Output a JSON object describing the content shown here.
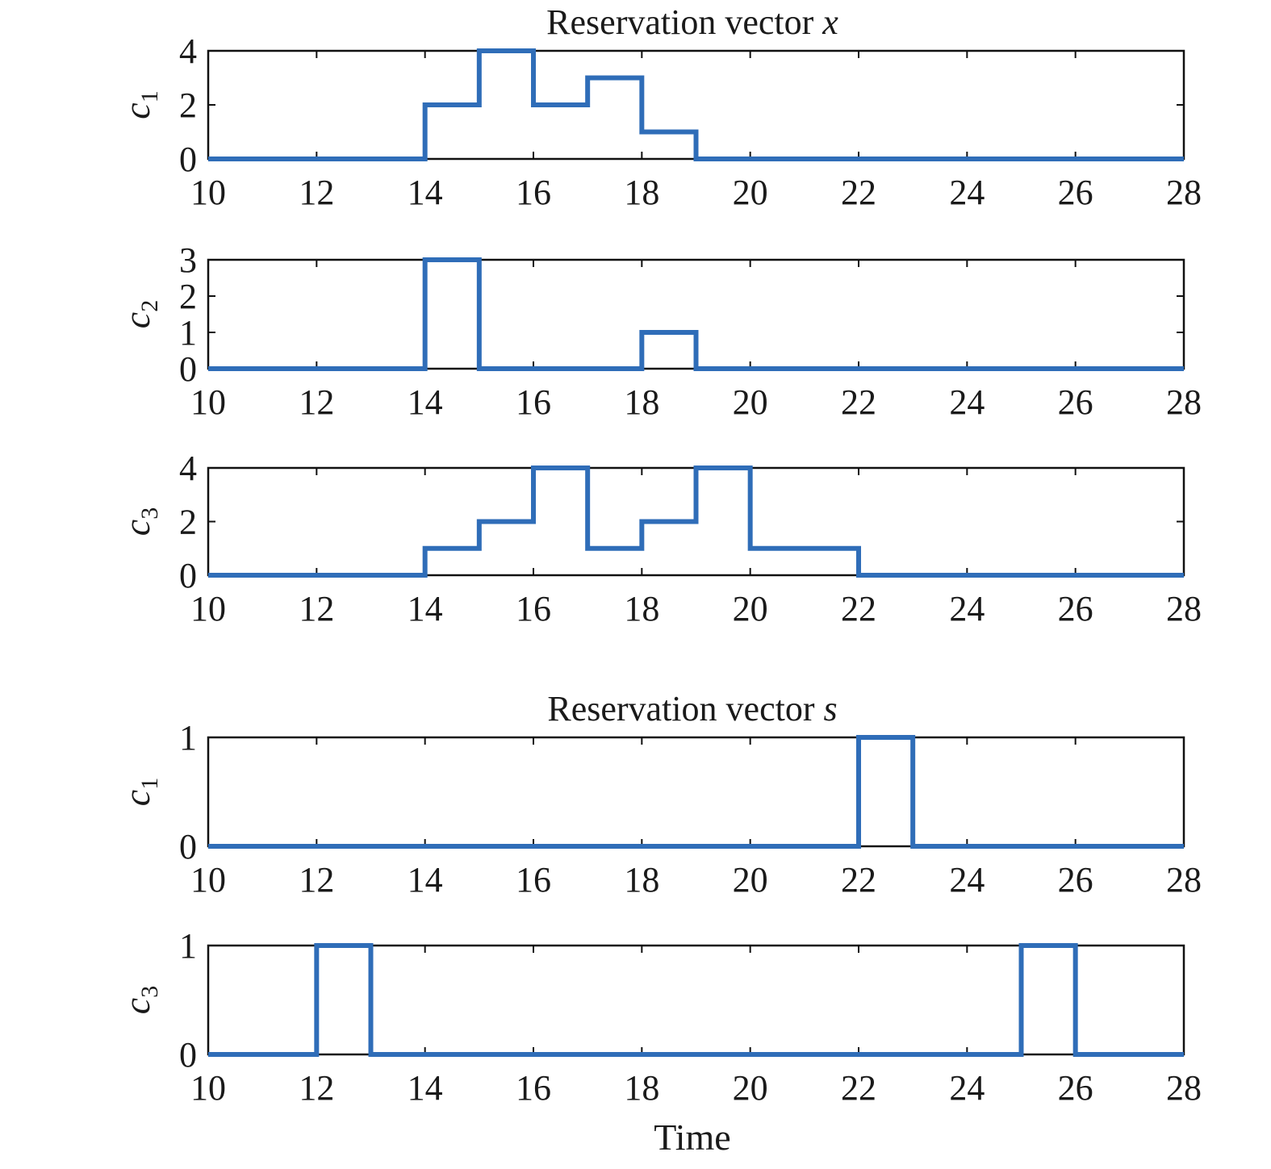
{
  "figure": {
    "title_x_prefix": "Reservation vector ",
    "title_x_var": "x",
    "title_s_prefix": "Reservation vector ",
    "title_s_var": "s",
    "xlabel": "Time"
  },
  "chart_data": [
    {
      "type": "line",
      "step": true,
      "group": "Reservation vector x",
      "ylabel_base": "c",
      "ylabel_sub": "1",
      "xlim": [
        10,
        28
      ],
      "ylim": [
        0,
        4
      ],
      "xticks": [
        10,
        12,
        14,
        16,
        18,
        20,
        22,
        24,
        26,
        28
      ],
      "yticks": [
        0,
        2,
        4
      ],
      "x": [
        10,
        11,
        12,
        13,
        14,
        15,
        16,
        17,
        18,
        19,
        20,
        21,
        22,
        23,
        24,
        25,
        26,
        27,
        28
      ],
      "values": [
        0,
        0,
        0,
        0,
        2,
        4,
        2,
        3,
        1,
        0,
        0,
        0,
        0,
        0,
        0,
        0,
        0,
        0,
        0
      ],
      "color": "#2f6db8"
    },
    {
      "type": "line",
      "step": true,
      "group": "Reservation vector x",
      "ylabel_base": "c",
      "ylabel_sub": "2",
      "xlim": [
        10,
        28
      ],
      "ylim": [
        0,
        3
      ],
      "xticks": [
        10,
        12,
        14,
        16,
        18,
        20,
        22,
        24,
        26,
        28
      ],
      "yticks": [
        0,
        1,
        2,
        3
      ],
      "x": [
        10,
        11,
        12,
        13,
        14,
        15,
        16,
        17,
        18,
        19,
        20,
        21,
        22,
        23,
        24,
        25,
        26,
        27,
        28
      ],
      "values": [
        0,
        0,
        0,
        0,
        3,
        0,
        0,
        0,
        1,
        0,
        0,
        0,
        0,
        0,
        0,
        0,
        0,
        0,
        0
      ],
      "color": "#2f6db8"
    },
    {
      "type": "line",
      "step": true,
      "group": "Reservation vector x",
      "ylabel_base": "c",
      "ylabel_sub": "3",
      "xlim": [
        10,
        28
      ],
      "ylim": [
        0,
        4
      ],
      "xticks": [
        10,
        12,
        14,
        16,
        18,
        20,
        22,
        24,
        26,
        28
      ],
      "yticks": [
        0,
        2,
        4
      ],
      "x": [
        10,
        11,
        12,
        13,
        14,
        15,
        16,
        17,
        18,
        19,
        20,
        21,
        22,
        23,
        24,
        25,
        26,
        27,
        28
      ],
      "values": [
        0,
        0,
        0,
        0,
        1,
        2,
        4,
        1,
        2,
        4,
        1,
        1,
        0,
        0,
        0,
        0,
        0,
        0,
        0
      ],
      "color": "#2f6db8"
    },
    {
      "type": "line",
      "step": true,
      "group": "Reservation vector s",
      "ylabel_base": "c",
      "ylabel_sub": "1",
      "xlim": [
        10,
        28
      ],
      "ylim": [
        0,
        1
      ],
      "xticks": [
        10,
        12,
        14,
        16,
        18,
        20,
        22,
        24,
        26,
        28
      ],
      "yticks": [
        0,
        1
      ],
      "x": [
        10,
        11,
        12,
        13,
        14,
        15,
        16,
        17,
        18,
        19,
        20,
        21,
        22,
        23,
        24,
        25,
        26,
        27,
        28
      ],
      "values": [
        0,
        0,
        0,
        0,
        0,
        0,
        0,
        0,
        0,
        0,
        0,
        0,
        1,
        0,
        0,
        0,
        0,
        0,
        0
      ],
      "color": "#2f6db8"
    },
    {
      "type": "line",
      "step": true,
      "group": "Reservation vector s",
      "ylabel_base": "c",
      "ylabel_sub": "3",
      "xlim": [
        10,
        28
      ],
      "ylim": [
        0,
        1
      ],
      "xticks": [
        10,
        12,
        14,
        16,
        18,
        20,
        22,
        24,
        26,
        28
      ],
      "yticks": [
        0,
        1
      ],
      "x": [
        10,
        11,
        12,
        13,
        14,
        15,
        16,
        17,
        18,
        19,
        20,
        21,
        22,
        23,
        24,
        25,
        26,
        27,
        28
      ],
      "values": [
        0,
        0,
        1,
        0,
        0,
        0,
        0,
        0,
        0,
        0,
        0,
        0,
        0,
        0,
        0,
        1,
        0,
        0,
        0
      ],
      "color": "#2f6db8"
    }
  ]
}
